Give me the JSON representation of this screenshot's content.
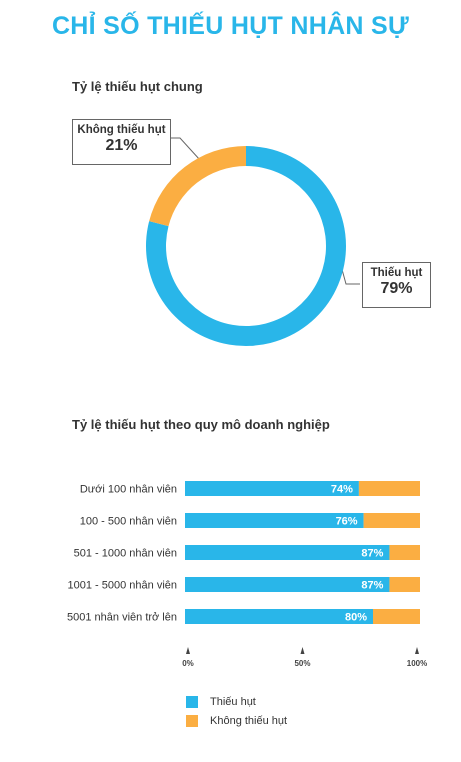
{
  "title": "CHỈ SỐ THIẾU HỤT NHÂN SỰ",
  "colors": {
    "primary": "#29b6e9",
    "secondary": "#fbae42"
  },
  "chart_data": [
    {
      "type": "pie",
      "title": "Tỷ lệ thiếu hụt chung",
      "slices": [
        {
          "label": "Thiếu hụt",
          "value": 79,
          "value_label": "79%"
        },
        {
          "label": "Không thiếu hụt",
          "value": 21,
          "value_label": "21%"
        }
      ]
    },
    {
      "type": "bar",
      "orientation": "horizontal",
      "stacked": true,
      "title": "Tỷ lệ thiếu hụt theo quy mô doanh nghiệp",
      "categories": [
        "Dưới 100 nhân viên",
        "100 - 500 nhân viên",
        "501 - 1000 nhân viên",
        "1001 - 5000 nhân viên",
        "5001 nhân viên trở lên"
      ],
      "series": [
        {
          "name": "Thiếu hụt",
          "values": [
            74,
            76,
            87,
            87,
            80
          ],
          "value_labels": [
            "74%",
            "76%",
            "87%",
            "87%",
            "80%"
          ]
        },
        {
          "name": "Không thiếu hụt",
          "values": [
            26,
            24,
            13,
            13,
            20
          ]
        }
      ],
      "xlim": [
        0,
        100
      ],
      "xticks": [
        "0%",
        "50%",
        "100%"
      ],
      "legend": "bottom"
    }
  ]
}
